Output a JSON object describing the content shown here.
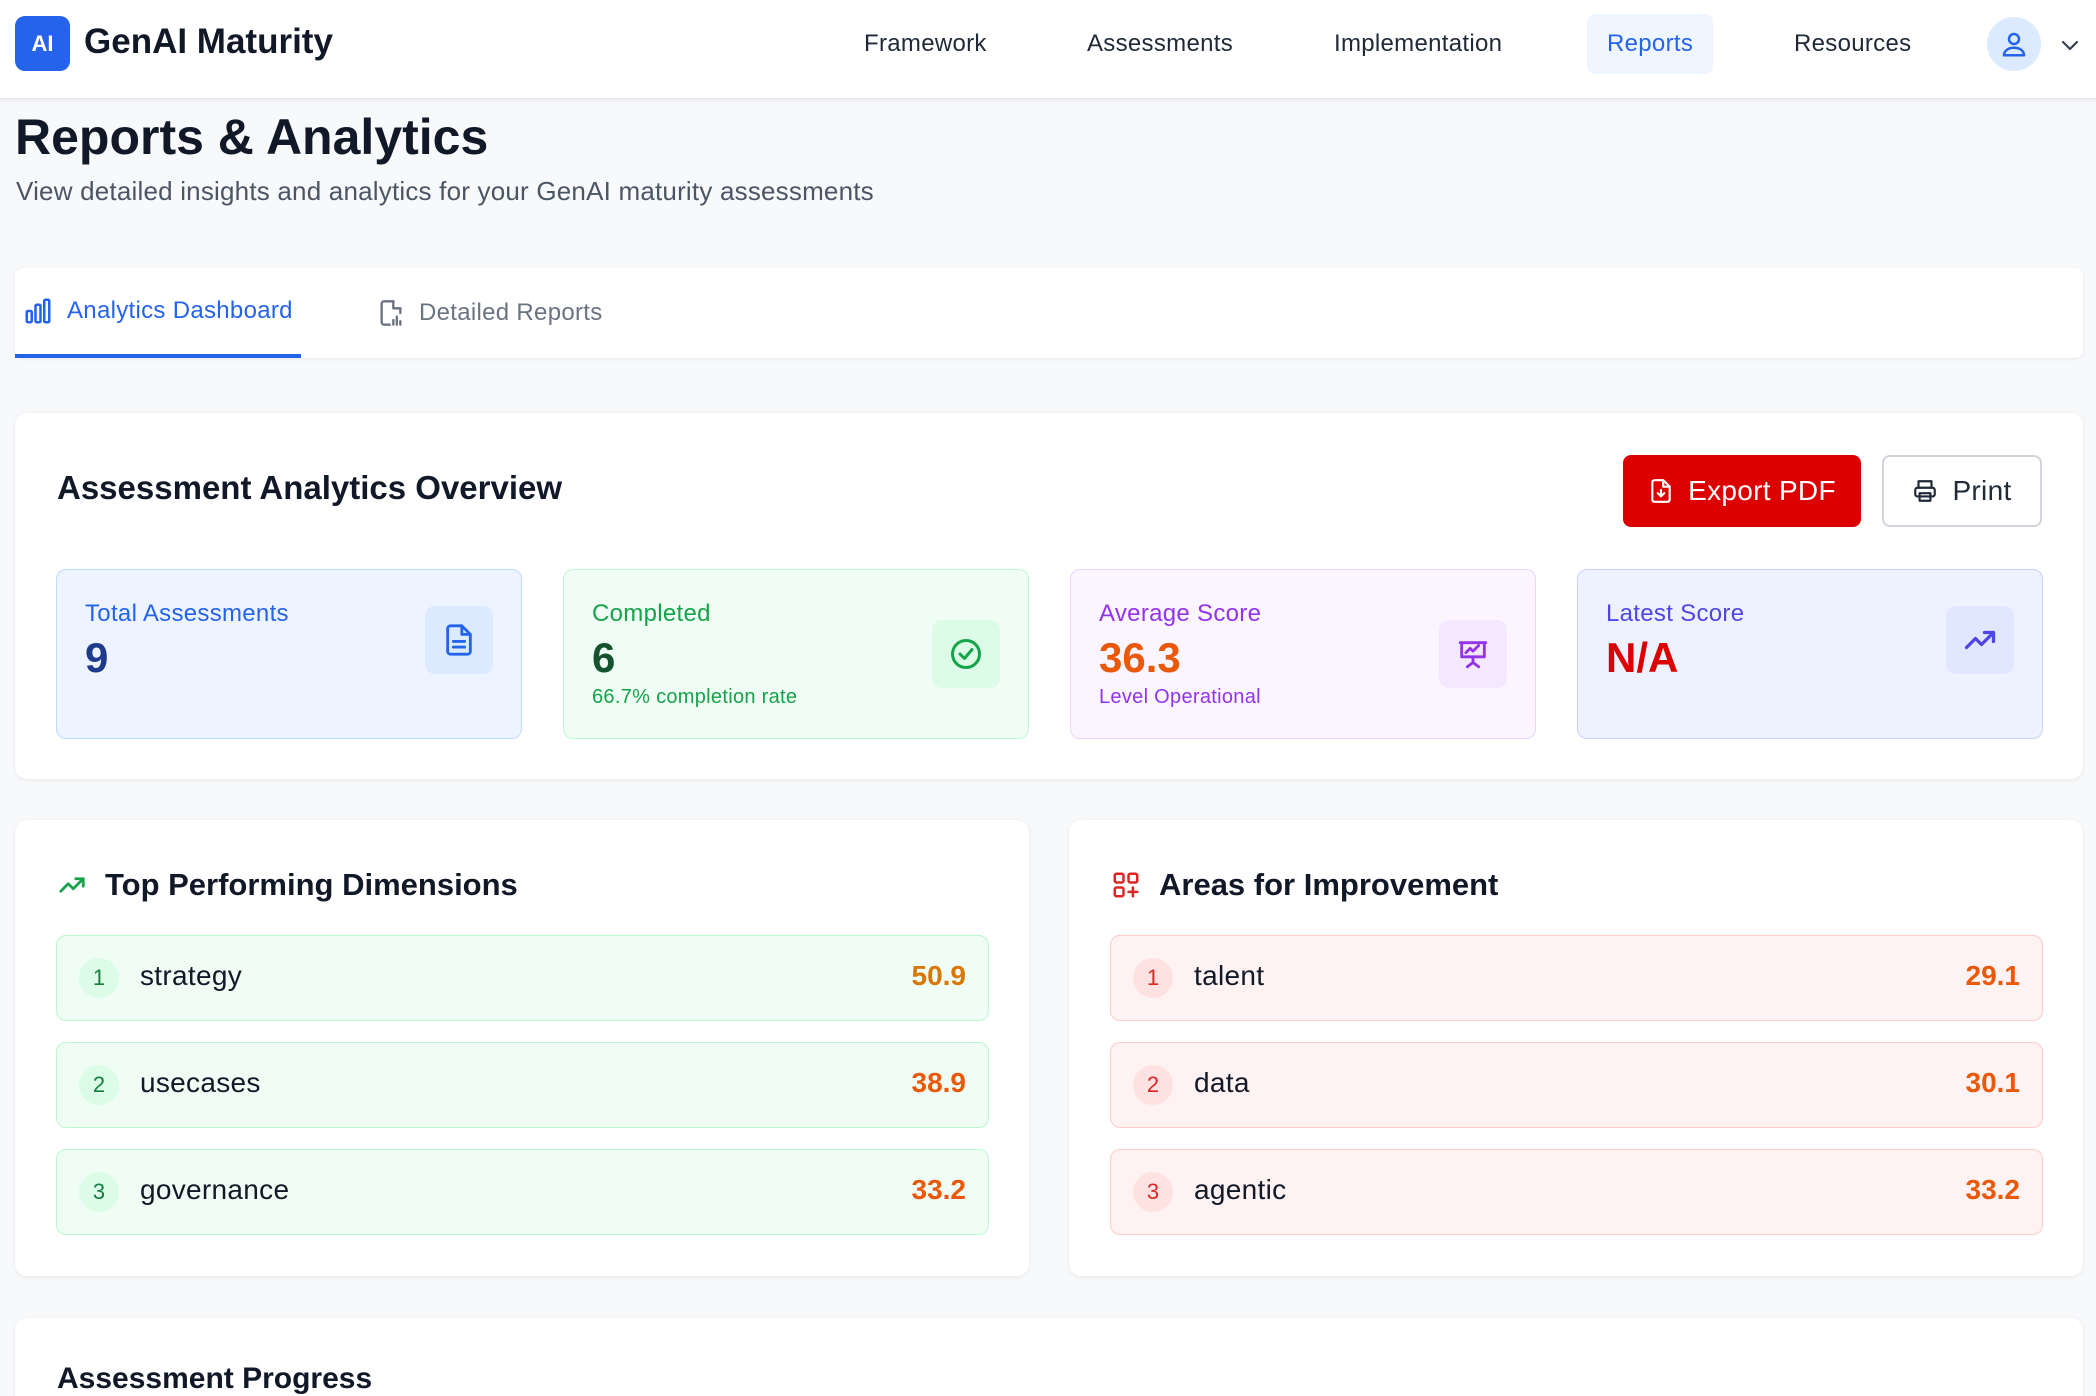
{
  "app": {
    "logo_badge": "AI",
    "title": "GenAI Maturity"
  },
  "nav": {
    "items": [
      {
        "label": "Framework"
      },
      {
        "label": "Assessments"
      },
      {
        "label": "Implementation"
      },
      {
        "label": "Reports",
        "active": true
      },
      {
        "label": "Resources"
      }
    ]
  },
  "header": {
    "title": "Reports & Analytics",
    "subtitle": "View detailed insights and analytics for your GenAI maturity assessments"
  },
  "tabs": [
    {
      "label": "Analytics Dashboard",
      "icon": "bar-chart-icon",
      "active": true
    },
    {
      "label": "Detailed Reports",
      "icon": "file-chart-icon",
      "active": false
    }
  ],
  "overview": {
    "title": "Assessment Analytics Overview",
    "export_label": "Export PDF",
    "print_label": "Print",
    "stats": [
      {
        "label": "Total Assessments",
        "value": "9",
        "note": "",
        "icon": "document-icon"
      },
      {
        "label": "Completed",
        "value": "6",
        "note": "66.7% completion rate",
        "icon": "check-circle-icon"
      },
      {
        "label": "Average Score",
        "value": "36.3",
        "note": "Level Operational",
        "icon": "presentation-chart-icon"
      },
      {
        "label": "Latest Score",
        "value": "N/A",
        "note": "",
        "icon": "trending-up-icon"
      }
    ]
  },
  "top_dimensions": {
    "title": "Top Performing Dimensions",
    "items": [
      {
        "rank": "1",
        "name": "strategy",
        "score": "50.9"
      },
      {
        "rank": "2",
        "name": "usecases",
        "score": "38.9"
      },
      {
        "rank": "3",
        "name": "governance",
        "score": "33.2"
      }
    ]
  },
  "improvement_areas": {
    "title": "Areas for Improvement",
    "items": [
      {
        "rank": "1",
        "name": "talent",
        "score": "29.1"
      },
      {
        "rank": "2",
        "name": "data",
        "score": "30.1"
      },
      {
        "rank": "3",
        "name": "agentic",
        "score": "33.2"
      }
    ]
  },
  "progress": {
    "title": "Assessment Progress"
  },
  "colors": {
    "primary": "#2563eb",
    "export_red": "#dc0000",
    "score_orange": "#ea580c",
    "score_amber": "#d97706"
  }
}
